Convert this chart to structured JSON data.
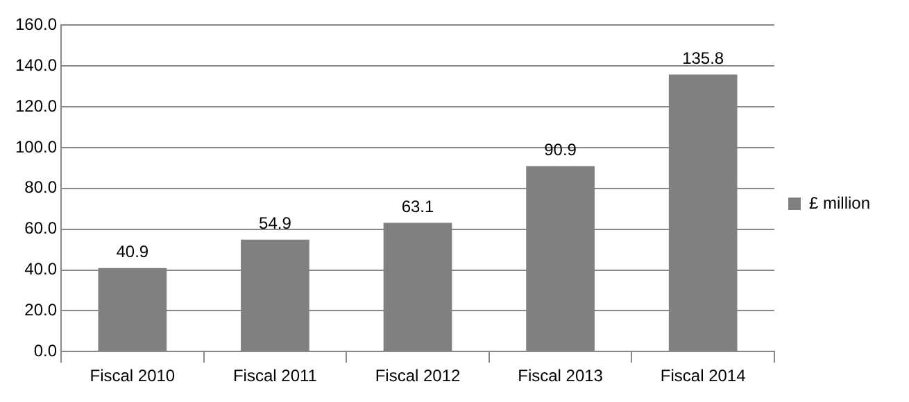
{
  "chart_data": {
    "type": "bar",
    "categories": [
      "Fiscal 2010",
      "Fiscal 2011",
      "Fiscal 2012",
      "Fiscal 2013",
      "Fiscal 2014"
    ],
    "series": [
      {
        "name": "£ million",
        "color": "#808080",
        "values": [
          40.9,
          54.9,
          63.1,
          90.9,
          135.8
        ]
      }
    ],
    "ylim": [
      0,
      160
    ],
    "yticks": [
      {
        "value": 0,
        "label": "0.0"
      },
      {
        "value": 20,
        "label": "20.0"
      },
      {
        "value": 40,
        "label": "40.0"
      },
      {
        "value": 60,
        "label": "60.0"
      },
      {
        "value": 80,
        "label": "80.0"
      },
      {
        "value": 100,
        "label": "100.0"
      },
      {
        "value": 120,
        "label": "120.0"
      },
      {
        "value": 140,
        "label": "140.0"
      },
      {
        "value": 160,
        "label": "160.0"
      }
    ],
    "grid": "y",
    "legend": "right",
    "data_labels": true
  }
}
